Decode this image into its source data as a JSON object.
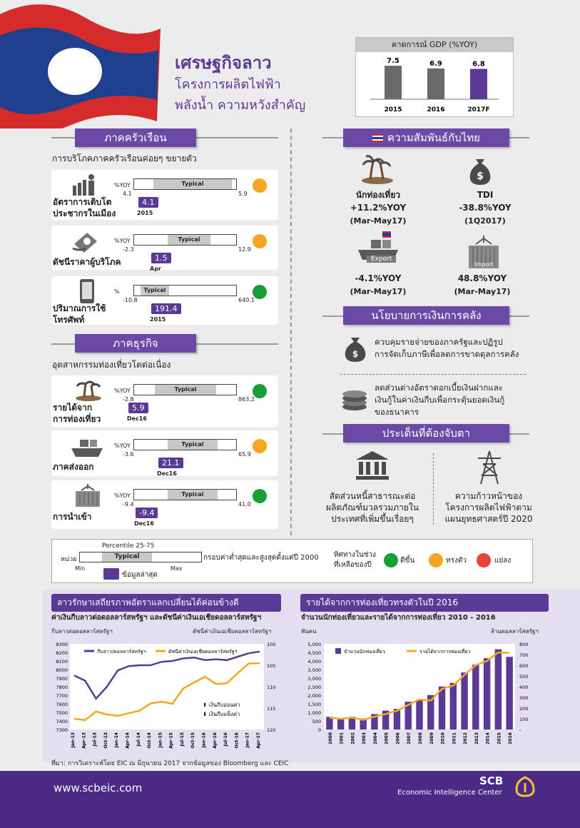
{
  "header": {
    "title": "เศรษฐกิจลาว",
    "subtitle1": "โครงการผลิตไฟฟ้า",
    "subtitle2": "พลังน้ำ ความหวังสำคัญ"
  },
  "colors": {
    "purple": "#5b3a96",
    "green": "#1a9e3a",
    "orange": "#f5a623",
    "red": "#e8413a"
  },
  "gdp": {
    "title": "คาดการณ์ GDP (%YOY)",
    "years": [
      "2015",
      "2016",
      "2017F"
    ],
    "values": [
      7.5,
      6.9,
      6.8
    ],
    "labels": [
      "7.5",
      "6.9",
      "6.8"
    ]
  },
  "household": {
    "title": "ภาคครัวเรือน",
    "subtitle": "การบริโภคภาคครัวเรือนค่อยๆ ขยายตัว",
    "items": [
      {
        "label1": "อัตราการเติบโต",
        "label2": "ประชากรในเมือง",
        "unit": "%YOY",
        "min": "4.1",
        "max": "5.9",
        "typical": "Typical",
        "latest": "4.1",
        "date": "2015",
        "status": "orange"
      },
      {
        "label1": "ดัชนีราคาผู้บริโภค",
        "label2": "",
        "unit": "%YOY",
        "min": "-2.3",
        "max": "12.9",
        "typical": "Typical",
        "latest": "1.5",
        "date": "Apr",
        "status": "orange"
      },
      {
        "label1": "ปริมาณการใช้",
        "label2": "โทรศัพท์",
        "unit": "%",
        "min": "-10.8",
        "max": "640.1",
        "typical": "Typical",
        "latest": "191.4",
        "date": "2015",
        "status": "green"
      }
    ]
  },
  "business": {
    "title": "ภาคธุรกิจ",
    "subtitle": "อุตสาหกรรมท่องเที่ยวโตต่อเนื่อง",
    "items": [
      {
        "label1": "รายได้จาก",
        "label2": "การท่องเที่ยว",
        "unit": "%YOY",
        "min": "-2.8",
        "max": "863.2",
        "typical": "Typical",
        "latest": "5.9",
        "date": "Dec16",
        "status": "green"
      },
      {
        "label1": "ภาคส่งออก",
        "label2": "",
        "unit": "%YOY",
        "min": "-3.6",
        "max": "65.9",
        "typical": "Typical",
        "latest": "21.1",
        "date": "Dec16",
        "status": "orange"
      },
      {
        "label1": "การนำเข้า",
        "label2": "",
        "unit": "%YOY",
        "min": "-9.4",
        "max": "41.0",
        "typical": "Typical",
        "latest": "-9.4",
        "date": "Dec16",
        "status": "green"
      }
    ]
  },
  "thai": {
    "title": "ความสัมพันธ์กับไทย",
    "items": [
      {
        "icon": "island-icon",
        "l1": "นักท่องเที่ยว",
        "l2": "+11.2%YOY",
        "l3": "(Mar-May17)"
      },
      {
        "icon": "money-bag-icon",
        "l1": "TDI",
        "l2": "-38.8%YOY",
        "l3": "(1Q2017)"
      },
      {
        "icon": "ship-icon",
        "tag": "Export",
        "l1": "",
        "l2": "-4.1%YOY",
        "l3": "(Mar-May17)"
      },
      {
        "icon": "container-icon",
        "tag": "Import",
        "l1": "",
        "l2": "48.8%YOY",
        "l3": "(Mar-May17)"
      }
    ]
  },
  "policy": {
    "title": "นโยบายการเงินการคลัง",
    "items": [
      {
        "l1": "ควบคุมรายจ่ายของภาครัฐและปฏิรูป",
        "l2": "การจัดเก็บภาษีเพื่อลดการขาดดุลการคลัง"
      },
      {
        "l1": "ลดส่วนต่างอัตราดอกเบี้ยเงินฝากและ",
        "l2": "เงินกู้ในค่าเงินกีบเพื่อกระตุ้นยอดเงินกู้",
        "l3": "ของธนาคาร"
      }
    ]
  },
  "watch": {
    "title": "ประเด็นที่ต้องจับตา",
    "items": [
      {
        "l1": "สัดส่วนหนี้สาธารณะต่อ",
        "l2": "ผลิตภัณฑ์มวลรวมภายใน",
        "l3": "ประเทศที่เพิ่มขึ้นเรื่อยๆ"
      },
      {
        "l1": "ความก้าวหน้าของ",
        "l2": "โครงการผลิตไฟฟ้าตาม",
        "l3": "แผนยุทธศาสตร์ปี 2020"
      }
    ]
  },
  "legend": {
    "percentile": "Percentile 25-75",
    "unit": "หน่วย",
    "typical": "Typical",
    "min": "Min",
    "max": "Max",
    "latest": "ข้อมูลล่าสุด",
    "range": "กรอบค่าต่ำสุดและสูงสุดตั้งแต่ปี 2000",
    "trend1": "ทิศทางในช่วง",
    "trend2": "ที่เหลือของปี",
    "good": "ดีขึ้น",
    "stable": "ทรงตัว",
    "bad": "แย่ลง"
  },
  "chart_data": [
    {
      "type": "line",
      "header": "ลาวรักษาเสถียรภาพอัตราแลกเปลี่ยนได้ค่อนข้างดี",
      "title": "ค่าเงินกีบลาวต่อดอลลาร์สหรัฐฯ และดัชนีค่าเงินเอเชียดอลลาร์สหรัฐฯ",
      "ylabel_left": "กีบลาวต่อดอลลาร์สหรัฐฯ",
      "ylabel_right": "ดัชนีค่าเงินเอเชียดอลลาร์สหรัฐฯ",
      "y_left_ticks": [
        "8300",
        "8200",
        "8100",
        "8000",
        "7900",
        "7800",
        "7700",
        "7600",
        "7500",
        "7400",
        "7300"
      ],
      "y_right_ticks": [
        "100",
        "105",
        "110",
        "115",
        "120"
      ],
      "ylim_left": [
        7300,
        8300
      ],
      "ylim_right": [
        100,
        120
      ],
      "categories": [
        "Jan-13",
        "Apr-13",
        "Jul-13",
        "Oct-13",
        "Jan-14",
        "Apr-14",
        "Jul-14",
        "Oct-14",
        "Jan-15",
        "Apr-15",
        "Jul-15",
        "Oct-15",
        "Jan-16",
        "Apr-16",
        "Jul-16",
        "Oct-16",
        "Jan-17",
        "Apr-17"
      ],
      "series": [
        {
          "name": "กีบลาว/ดอลลาร์สหรัฐฯ",
          "axis": "left",
          "color": "#5b3a96",
          "values": [
            7930,
            7870,
            7660,
            7800,
            7990,
            8040,
            8050,
            8050,
            8090,
            8100,
            8130,
            8140,
            8110,
            8120,
            8110,
            8150,
            8190,
            8210
          ]
        },
        {
          "name": "ดัชนีค่าเงินเอเชียดอลลาร์สหรัฐฯ",
          "axis": "right",
          "color": "#f5a623",
          "values": [
            117.5,
            117.8,
            115.8,
            116.5,
            116.8,
            116.2,
            115.6,
            113.9,
            113.5,
            114.0,
            110.4,
            109.0,
            107.7,
            109.4,
            109.2,
            106.8,
            104.6,
            104.5
          ]
        }
      ],
      "annotation_up": "เงินกีบอ่อนค่า",
      "annotation_down": "เงินกีบแข็งค่า"
    },
    {
      "type": "bar+line",
      "header": "รายได้จากการท่องเที่ยวทรงตัวในปี 2016",
      "title": "จำนวนนักท่องเที่ยวและรายได้จากการท่องเที่ยว 2010 - 2016",
      "ylabel_left": "พันคน",
      "ylabel_right": "ล้านดอลลาร์สหรัฐฯ",
      "y_left_ticks": [
        "5,000",
        "4,500",
        "4,000",
        "3,500",
        "3,000",
        "2,500",
        "2,000",
        "1,500",
        "1,000",
        "500",
        "0"
      ],
      "y_right_ticks": [
        "800",
        "700",
        "600",
        "500",
        "400",
        "300",
        "200",
        "100",
        "-"
      ],
      "ylim_left": [
        0,
        5000
      ],
      "ylim_right": [
        0,
        800
      ],
      "categories": [
        "2000",
        "2001",
        "2002",
        "2003",
        "2004",
        "2005",
        "2006",
        "2007",
        "2008",
        "2009",
        "2010",
        "2011",
        "2012",
        "2013",
        "2014",
        "2015",
        "2016"
      ],
      "series": [
        {
          "name": "จำนวนนักท่องเที่ยว",
          "axis": "left",
          "type": "bar",
          "color": "#5b3a96",
          "values": [
            740,
            670,
            740,
            640,
            900,
            1100,
            1200,
            1620,
            1740,
            2010,
            2510,
            2720,
            3330,
            3780,
            4160,
            4680,
            4240
          ]
        },
        {
          "name": "รายได้จากการท่องเที่ยว",
          "axis": "right",
          "type": "line",
          "color": "#f5a623",
          "values": [
            110,
            100,
            110,
            90,
            120,
            145,
            175,
            230,
            280,
            270,
            380,
            410,
            510,
            600,
            640,
            720,
            715
          ]
        }
      ]
    }
  ],
  "footer": {
    "source": "ที่มา: การวิเคราะห์โดย EIC ณ มิถุนายน 2017 จากข้อมูลของ Bloomberg และ CEIC",
    "url": "www.scbeic.com",
    "brand1": "SCB",
    "brand2": "Economic Intelligence Center"
  }
}
